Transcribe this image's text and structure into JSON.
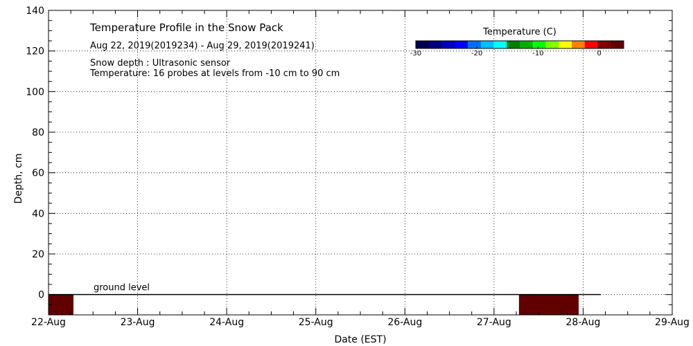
{
  "chart_data": {
    "type": "heatmap",
    "title": "Temperature Profile in the Snow Pack",
    "subtitle": "Aug 22, 2019(2019234) - Aug 29, 2019(2019241)",
    "notes": [
      "Snow depth : Ultrasonic sensor",
      "Temperature: 16 probes at levels from -10 cm to 90 cm"
    ],
    "xlabel": "Date (EST)",
    "ylabel": "Depth, cm",
    "x_ticks": [
      "22-Aug",
      "23-Aug",
      "24-Aug",
      "25-Aug",
      "26-Aug",
      "27-Aug",
      "28-Aug",
      "29-Aug"
    ],
    "xlim_days": [
      0,
      7
    ],
    "ylim": [
      -10,
      140
    ],
    "y_ticks": [
      0,
      20,
      40,
      60,
      80,
      100,
      120,
      140
    ],
    "grid": true,
    "ground_level": {
      "label": "ground level",
      "value": 0,
      "end_day": 6.2
    },
    "colorbar": {
      "title": "Temperature (C)",
      "ticks": [
        -30,
        -20,
        -10,
        0
      ],
      "range": [
        -30,
        4
      ],
      "colors": [
        "#000050",
        "#000080",
        "#0000C0",
        "#0000FF",
        "#0070FF",
        "#00BFFF",
        "#00FFFF",
        "#008000",
        "#00B000",
        "#00FF00",
        "#80FF00",
        "#FFFF00",
        "#FF8000",
        "#FF0000",
        "#800000",
        "#600000"
      ]
    },
    "cells": [
      {
        "start_day": 0.0,
        "end_day": 0.28,
        "ymin": -10,
        "ymax": 0,
        "color": "#600000"
      },
      {
        "start_day": 5.28,
        "end_day": 5.95,
        "ymin": -10,
        "ymax": 0,
        "color": "#600000"
      }
    ]
  }
}
